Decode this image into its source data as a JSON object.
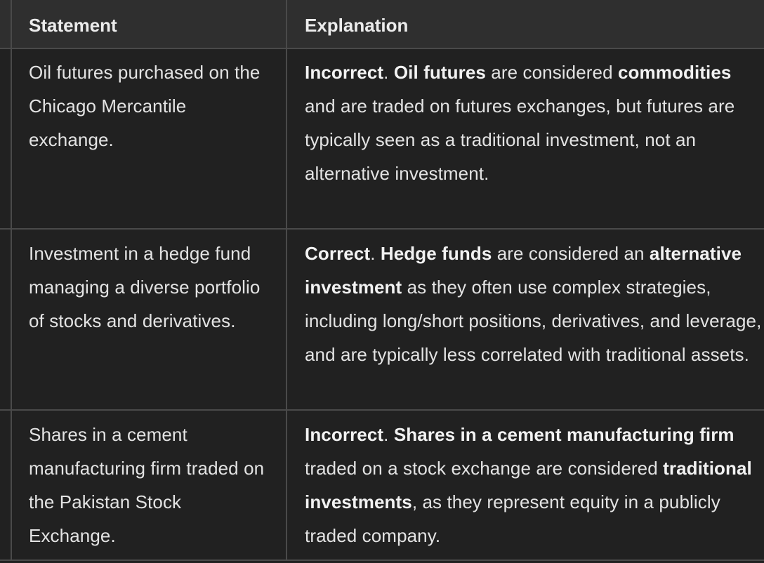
{
  "table": {
    "headers": [
      "Statement",
      "Explanation"
    ],
    "rows": [
      {
        "statement": "Oil futures purchased on the Chicago Mercantile exchange.",
        "verdict": "Incorrect",
        "sep1": ". ",
        "subject": "Oil futures",
        "text1": " are considered ",
        "key": "commodities",
        "text2": " and are traded on futures exchanges, but futures are typically seen as a traditional investment, not an alternative investment."
      },
      {
        "statement": "Investment in a hedge fund managing a diverse portfolio of stocks and derivatives.",
        "verdict": "Correct",
        "sep1": ". ",
        "subject": "Hedge funds",
        "text1": " are considered an ",
        "key": "alternative investment",
        "text2": " as they often use complex strategies, including long/short positions, derivatives, and leverage, and are typically less correlated with traditional assets."
      },
      {
        "statement": "Shares in a cement manufacturing firm traded on the Pakistan Stock Exchange.",
        "verdict": "Incorrect",
        "sep1": ". ",
        "subject": "Shares in a cement manufacturing firm",
        "text1": " traded on a stock exchange are considered ",
        "key": "traditional investments",
        "text2": ", as they represent equity in a publicly traded company."
      }
    ]
  }
}
